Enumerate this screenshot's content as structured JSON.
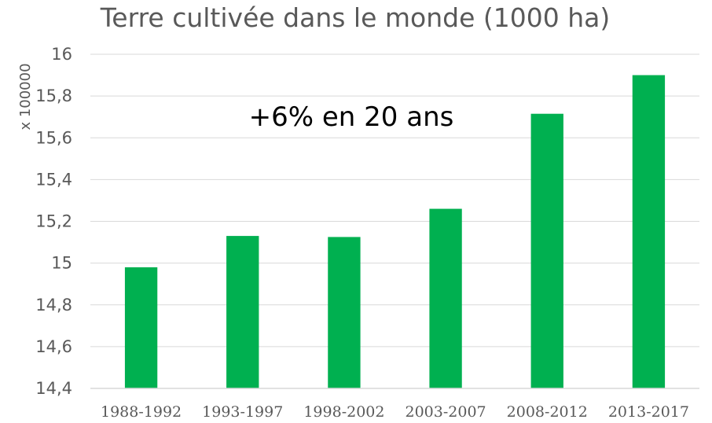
{
  "chart_data": {
    "type": "bar",
    "title": "Terre cultivée dans le monde (1000 ha)",
    "ylabel": "x 100000",
    "xlabel": "",
    "annotation": "+6% en 20 ans",
    "categories": [
      "1988-1992",
      "1993-1997",
      "1998-2002",
      "2003-2007",
      "2008-2012",
      "2013-2017"
    ],
    "values": [
      14.98,
      15.13,
      15.125,
      15.26,
      15.715,
      15.9
    ],
    "ylim": [
      14.4,
      16
    ],
    "yticks": [
      14.4,
      14.6,
      14.8,
      15,
      15.2,
      15.4,
      15.6,
      15.8,
      16
    ],
    "ytick_labels": [
      "14,4",
      "14,6",
      "14,8",
      "15",
      "15,2",
      "15,4",
      "15,6",
      "15,8",
      "16"
    ],
    "grid": true,
    "legend": "none",
    "bar_color": "#00b050"
  }
}
